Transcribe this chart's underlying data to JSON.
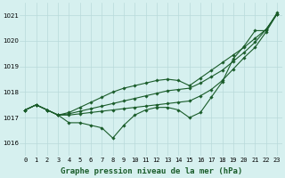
{
  "background_color": "#d6f0ef",
  "grid_color": "#b8dada",
  "line_color": "#1a5c2a",
  "x_labels": [
    "0",
    "1",
    "2",
    "3",
    "4",
    "5",
    "6",
    "7",
    "8",
    "9",
    "10",
    "11",
    "12",
    "13",
    "14",
    "15",
    "16",
    "17",
    "18",
    "19",
    "20",
    "21",
    "22",
    "23"
  ],
  "xlabel": "Graphe pression niveau de la mer (hPa)",
  "ylim": [
    1015.5,
    1021.5
  ],
  "yticks": [
    1016,
    1017,
    1018,
    1019,
    1020,
    1021
  ],
  "series": [
    [
      1017.3,
      1017.5,
      1017.3,
      1017.1,
      1016.8,
      1016.8,
      1016.7,
      1016.6,
      1016.2,
      1016.7,
      1017.1,
      1017.3,
      1017.4,
      1017.4,
      1017.3,
      1017.0,
      1017.2,
      1017.8,
      1018.4,
      1019.3,
      1019.8,
      1020.4,
      1020.4,
      1021.1
    ],
    [
      1017.3,
      1017.5,
      1017.3,
      1017.1,
      1017.15,
      1017.25,
      1017.35,
      1017.45,
      1017.55,
      1017.65,
      1017.75,
      1017.85,
      1017.95,
      1018.05,
      1018.1,
      1018.15,
      1018.35,
      1018.6,
      1018.85,
      1019.2,
      1019.55,
      1019.95,
      1020.45,
      1021.05
    ],
    [
      1017.3,
      1017.5,
      1017.3,
      1017.1,
      1017.2,
      1017.4,
      1017.6,
      1017.8,
      1018.0,
      1018.15,
      1018.25,
      1018.35,
      1018.45,
      1018.5,
      1018.45,
      1018.25,
      1018.55,
      1018.85,
      1019.15,
      1019.45,
      1019.75,
      1020.1,
      1020.45,
      1021.05
    ],
    [
      1017.3,
      1017.5,
      1017.3,
      1017.1,
      1017.1,
      1017.15,
      1017.2,
      1017.25,
      1017.3,
      1017.35,
      1017.4,
      1017.45,
      1017.5,
      1017.55,
      1017.6,
      1017.65,
      1017.85,
      1018.1,
      1018.45,
      1018.9,
      1019.35,
      1019.75,
      1020.35,
      1021.05
    ]
  ],
  "marker": "D",
  "markersize": 1.8,
  "linewidth": 0.8,
  "xlabel_fontsize": 6.5,
  "tick_fontsize": 5.0,
  "figsize": [
    3.2,
    2.0
  ],
  "dpi": 100
}
